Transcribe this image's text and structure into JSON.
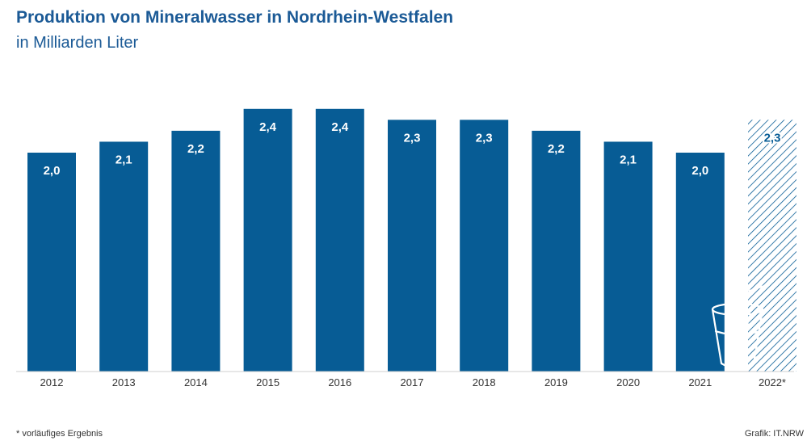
{
  "title": "Produktion von Mineralwasser in Nordrhein-Westfalen",
  "subtitle": "in Milliarden Liter",
  "footnote": "*  vorläufiges Ergebnis",
  "source": "Grafik: IT.NRW",
  "colors": {
    "bar": "#075c95",
    "title": "#1b5a96",
    "hatch": "#075c95",
    "axis": "#cfcfcf",
    "tick_text": "#333333",
    "label_text": "#ffffff",
    "hatched_label_text": "#075c95"
  },
  "icon": "glass-with-straw-icon",
  "chart_data": {
    "type": "bar",
    "title": "Produktion von Mineralwasser in Nordrhein-Westfalen",
    "subtitle": "in Milliarden Liter",
    "categories": [
      "2012",
      "2013",
      "2014",
      "2015",
      "2016",
      "2017",
      "2018",
      "2019",
      "2020",
      "2021",
      "2022*"
    ],
    "values": [
      2.0,
      2.1,
      2.2,
      2.4,
      2.4,
      2.3,
      2.3,
      2.2,
      2.1,
      2.0,
      2.3
    ],
    "value_labels": [
      "2,0",
      "2,1",
      "2,2",
      "2,4",
      "2,4",
      "2,3",
      "2,3",
      "2,2",
      "2,1",
      "2,0",
      "2,3"
    ],
    "provisional": [
      false,
      false,
      false,
      false,
      false,
      false,
      false,
      false,
      false,
      false,
      true
    ],
    "ylim": [
      0,
      2.5
    ],
    "grid": false,
    "legend": "none"
  }
}
